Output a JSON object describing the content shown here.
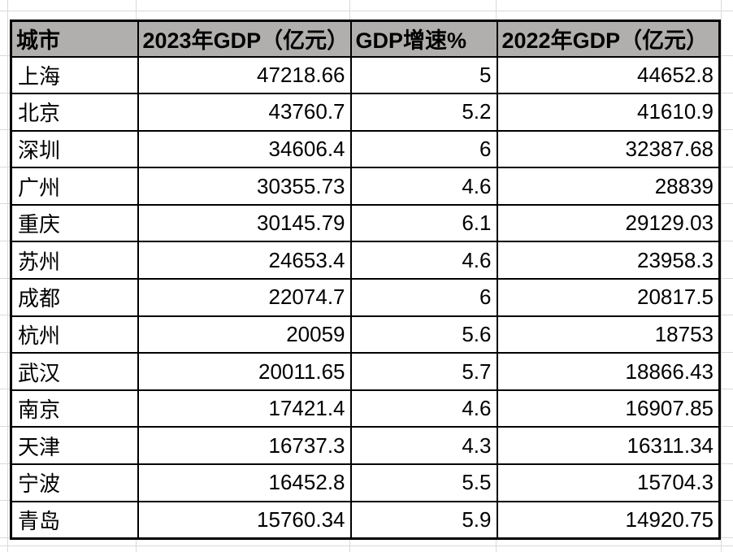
{
  "table": {
    "headers": [
      "城市",
      "2023年GDP（亿元）",
      "GDP增速%",
      "2022年GDP（亿元）"
    ],
    "rows": [
      {
        "city": "上海",
        "gdp_2023": "47218.66",
        "growth_pct": "5",
        "gdp_2022": "44652.8"
      },
      {
        "city": "北京",
        "gdp_2023": "43760.7",
        "growth_pct": "5.2",
        "gdp_2022": "41610.9"
      },
      {
        "city": "深圳",
        "gdp_2023": "34606.4",
        "growth_pct": "6",
        "gdp_2022": "32387.68"
      },
      {
        "city": "广州",
        "gdp_2023": "30355.73",
        "growth_pct": "4.6",
        "gdp_2022": "28839"
      },
      {
        "city": "重庆",
        "gdp_2023": "30145.79",
        "growth_pct": "6.1",
        "gdp_2022": "29129.03"
      },
      {
        "city": "苏州",
        "gdp_2023": "24653.4",
        "growth_pct": "4.6",
        "gdp_2022": "23958.3"
      },
      {
        "city": "成都",
        "gdp_2023": "22074.7",
        "growth_pct": "6",
        "gdp_2022": "20817.5"
      },
      {
        "city": "杭州",
        "gdp_2023": "20059",
        "growth_pct": "5.6",
        "gdp_2022": "18753"
      },
      {
        "city": "武汉",
        "gdp_2023": "20011.65",
        "growth_pct": "5.7",
        "gdp_2022": "18866.43"
      },
      {
        "city": "南京",
        "gdp_2023": "17421.4",
        "growth_pct": "4.6",
        "gdp_2022": "16907.85"
      },
      {
        "city": "天津",
        "gdp_2023": "16737.3",
        "growth_pct": "4.3",
        "gdp_2022": "16311.34"
      },
      {
        "city": "宁波",
        "gdp_2023": "16452.8",
        "growth_pct": "5.5",
        "gdp_2022": "15704.3"
      },
      {
        "city": "青岛",
        "gdp_2023": "15760.34",
        "growth_pct": "5.9",
        "gdp_2022": "14920.75"
      }
    ]
  },
  "colors": {
    "header_bg": "#b1afad",
    "table_border": "#000000",
    "gridline": "#d9d9d9",
    "text": "#000000"
  }
}
